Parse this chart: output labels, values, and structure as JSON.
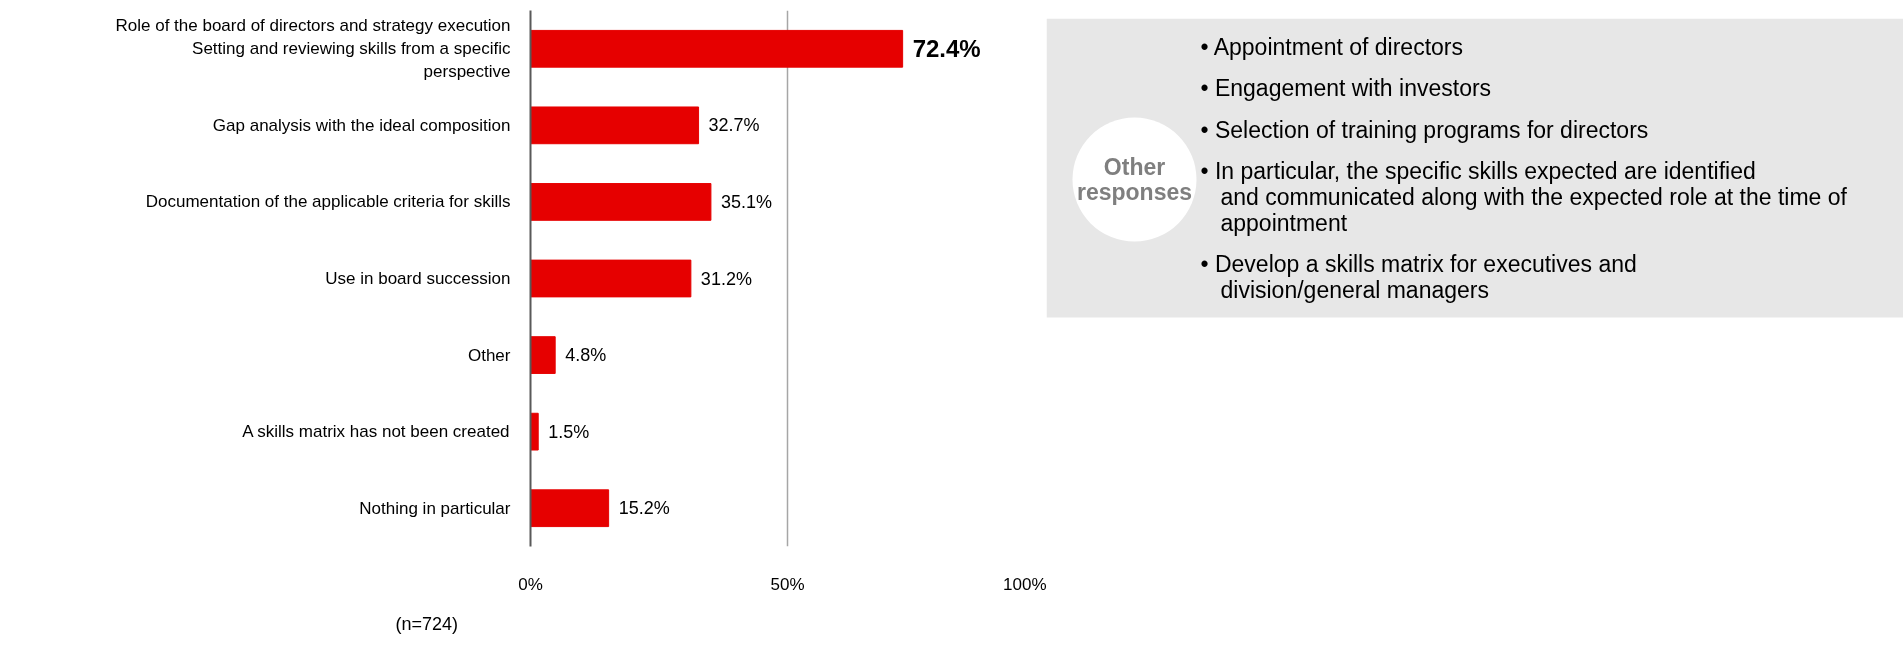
{
  "chart_data": [
    {
      "type": "bar",
      "orientation": "horizontal",
      "categories": [
        "Role of the board of directors and strategy execution Setting and reviewing skills from a specific perspective",
        "Gap analysis with the ideal composition",
        "Documentation of the applicable criteria for skills",
        "Use in board succession",
        "Other",
        "A skills matrix has not been created",
        "Nothing in particular"
      ],
      "values": [
        72.4,
        32.7,
        35.1,
        31.2,
        4.8,
        1.5,
        15.2
      ],
      "value_labels": [
        "72.4%",
        "32.7%",
        "35.1%",
        "31.2%",
        "4.8%",
        "1.5%",
        "15.2%"
      ],
      "color": "#e60000",
      "xlim": [
        0,
        100
      ],
      "xticks": [
        {
          "value": 0,
          "label": "0%"
        },
        {
          "value": 50,
          "label": "50%"
        },
        {
          "value": 100,
          "label": "100%"
        }
      ],
      "grid": "x",
      "annotations": [
        "(n=724)"
      ]
    },
    {
      "type": "other",
      "title": "Other responses",
      "annotations": [
        "• Appointment of directors",
        "• Engagement with investors",
        "• Selection of training programs for directors",
        "• In particular, the specific skills expected are identified and communicated along with the expected role at the time of appointment",
        "• Develop a skills matrix for executives and division/general managers"
      ]
    }
  ]
}
